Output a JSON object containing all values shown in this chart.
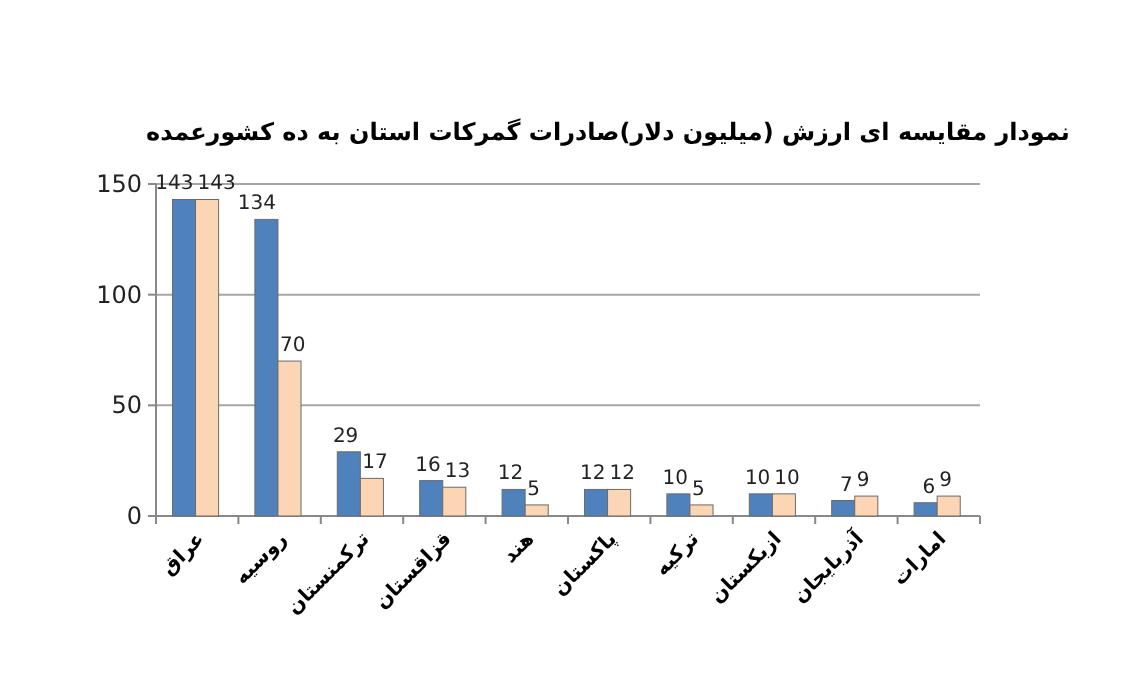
{
  "chart_data": {
    "type": "bar",
    "title": "نمودار مقایسه ای ارزش (میلیون دلار)صادرات گمرکات استان به ده کشورعمده",
    "categories": [
      "عراق",
      "روسیه",
      "ترکمنستان",
      "قزاقستان",
      "هند",
      "پاکستان",
      "ترکیه",
      "ازبکستان",
      "آذربایجان",
      "امارات"
    ],
    "series": [
      {
        "color": "#4f81bd",
        "values": [
          143,
          134,
          29,
          16,
          12,
          12,
          10,
          10,
          7,
          6
        ]
      },
      {
        "color": "#fcd5b5",
        "values": [
          143,
          70,
          17,
          13,
          5,
          12,
          5,
          10,
          9,
          9
        ]
      }
    ],
    "ylim": [
      0,
      150
    ],
    "yticks": [
      0,
      50,
      100,
      150
    ],
    "grid": "y",
    "data_labels": true
  }
}
